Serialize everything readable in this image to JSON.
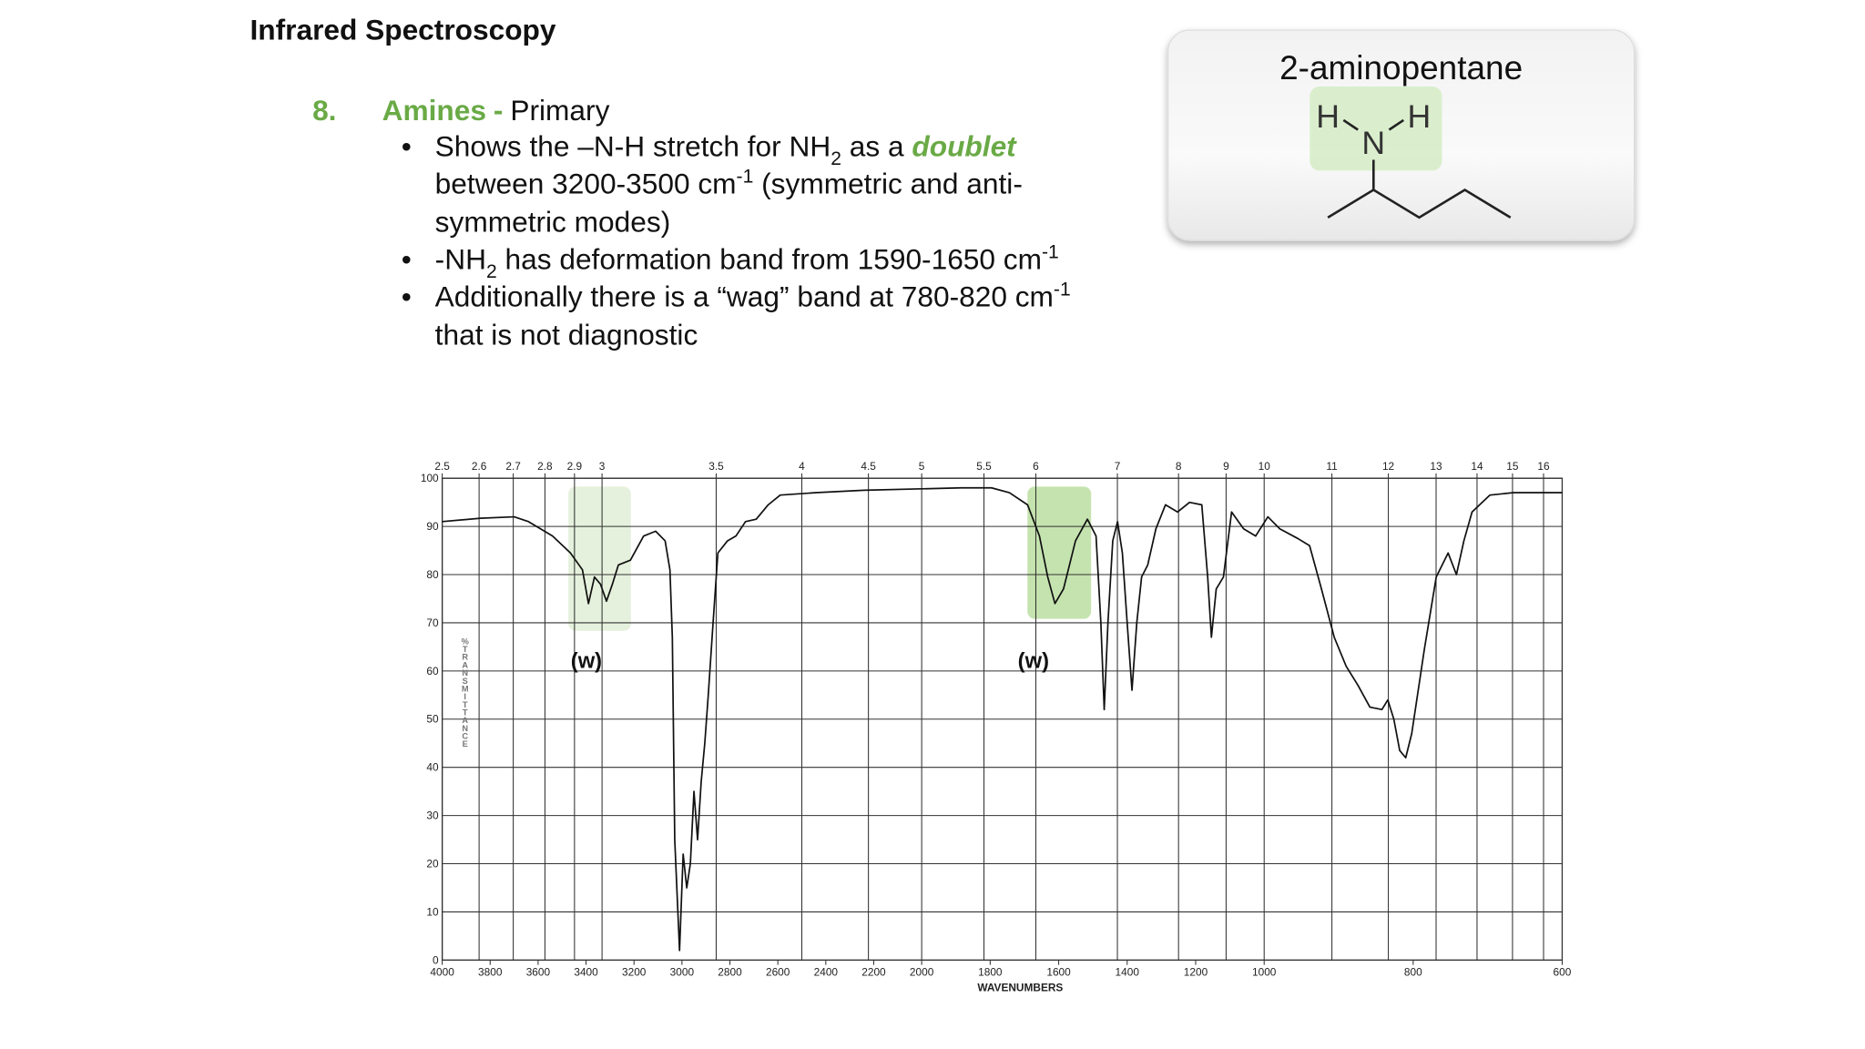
{
  "slide": {
    "title": "Infrared Spectroscopy",
    "item_number": "8.",
    "heading": "Amines",
    "separator": "-",
    "subheading": "Primary",
    "bullets": [
      [
        [
          "Shows the –N-H stretch for NH",
          "2",
          " as a ",
          "doublet"
        ],
        [
          "between 3200-3500 cm",
          "-1",
          " (symmetric and anti-"
        ],
        [
          "symmetric modes)"
        ]
      ],
      [
        [
          "-NH",
          "2",
          " has deformation band from 1590-1650 cm",
          "-1"
        ]
      ],
      [
        [
          "Additionally there is a “wag” band at 780-820 cm",
          "-1"
        ],
        [
          "that is not diagnostic"
        ]
      ]
    ]
  },
  "molecule": {
    "name": "2-aminopentane",
    "atoms": [
      "H",
      "N",
      "H"
    ]
  },
  "chart_data": {
    "type": "line",
    "x_label": "WAVENUMBERS",
    "y_label": "%TRANSMITTANCE",
    "annotations": [
      "(w)",
      "(w)"
    ],
    "xlim": [
      4000,
      600
    ],
    "x_breaks": [
      2000,
      1000
    ],
    "xticks": [
      4000,
      3800,
      3600,
      3400,
      3200,
      3000,
      2800,
      2600,
      2400,
      2200,
      2000,
      1800,
      1600,
      1400,
      1200,
      1000,
      800,
      600
    ],
    "x2ticks": [
      2.5,
      2.6,
      2.7,
      2.8,
      2.9,
      3,
      3.5,
      4,
      4.5,
      5,
      5.5,
      6,
      7,
      8,
      9,
      10,
      11,
      12,
      13,
      14,
      15,
      16
    ],
    "ylim": [
      0,
      100
    ],
    "yticks": [
      0,
      10,
      20,
      30,
      40,
      50,
      60,
      70,
      80,
      90,
      100
    ],
    "grid": true,
    "color": "#111111",
    "x": [
      4000,
      3840,
      3700,
      3640,
      3540,
      3465,
      3415,
      3390,
      3365,
      3340,
      3315,
      3290,
      3265,
      3215,
      3160,
      3110,
      3070,
      3050,
      3040,
      3030,
      3010,
      2995,
      2980,
      2965,
      2950,
      2935,
      2920,
      2905,
      2890,
      2870,
      2850,
      2810,
      2775,
      2735,
      2690,
      2640,
      2590,
      2440,
      2240,
      2000,
      1884,
      1796,
      1744,
      1691,
      1656,
      1632,
      1611,
      1586,
      1551,
      1516,
      1491,
      1477,
      1467,
      1456,
      1442,
      1428,
      1414,
      1400,
      1386,
      1372,
      1358,
      1340,
      1316,
      1288,
      1253,
      1218,
      1182,
      1165,
      1154,
      1140,
      1119,
      1095,
      1060,
      1025,
      995,
      979,
      955,
      939,
      923,
      906,
      890,
      874,
      858,
      842,
      834,
      826,
      818,
      810,
      802,
      785,
      769,
      753,
      742,
      732,
      721,
      697,
      665,
      600
    ],
    "values": [
      91,
      91.7,
      92,
      91,
      88,
      84.5,
      81,
      74,
      79.5,
      78,
      74.5,
      78,
      82,
      83,
      88,
      89,
      87,
      81,
      67,
      25,
      2,
      22,
      15,
      20,
      35,
      25,
      37,
      45,
      55,
      70,
      84.5,
      87,
      88,
      91,
      91.5,
      94.5,
      96.5,
      97,
      97.5,
      97.8,
      98,
      98,
      97,
      94.5,
      88,
      79.5,
      74,
      77,
      87,
      91.5,
      88,
      70,
      52,
      70,
      87,
      91,
      84.5,
      70,
      56,
      70,
      79.5,
      82,
      89.5,
      94.5,
      93,
      95,
      94.5,
      79.5,
      67,
      77,
      79.5,
      93,
      89.5,
      88,
      92,
      89.5,
      87.5,
      86,
      77,
      67,
      61,
      57,
      52.5,
      52,
      54,
      50,
      43.5,
      42,
      47,
      64.5,
      79.5,
      84.5,
      80,
      87,
      93,
      96.5,
      97,
      97
    ]
  }
}
